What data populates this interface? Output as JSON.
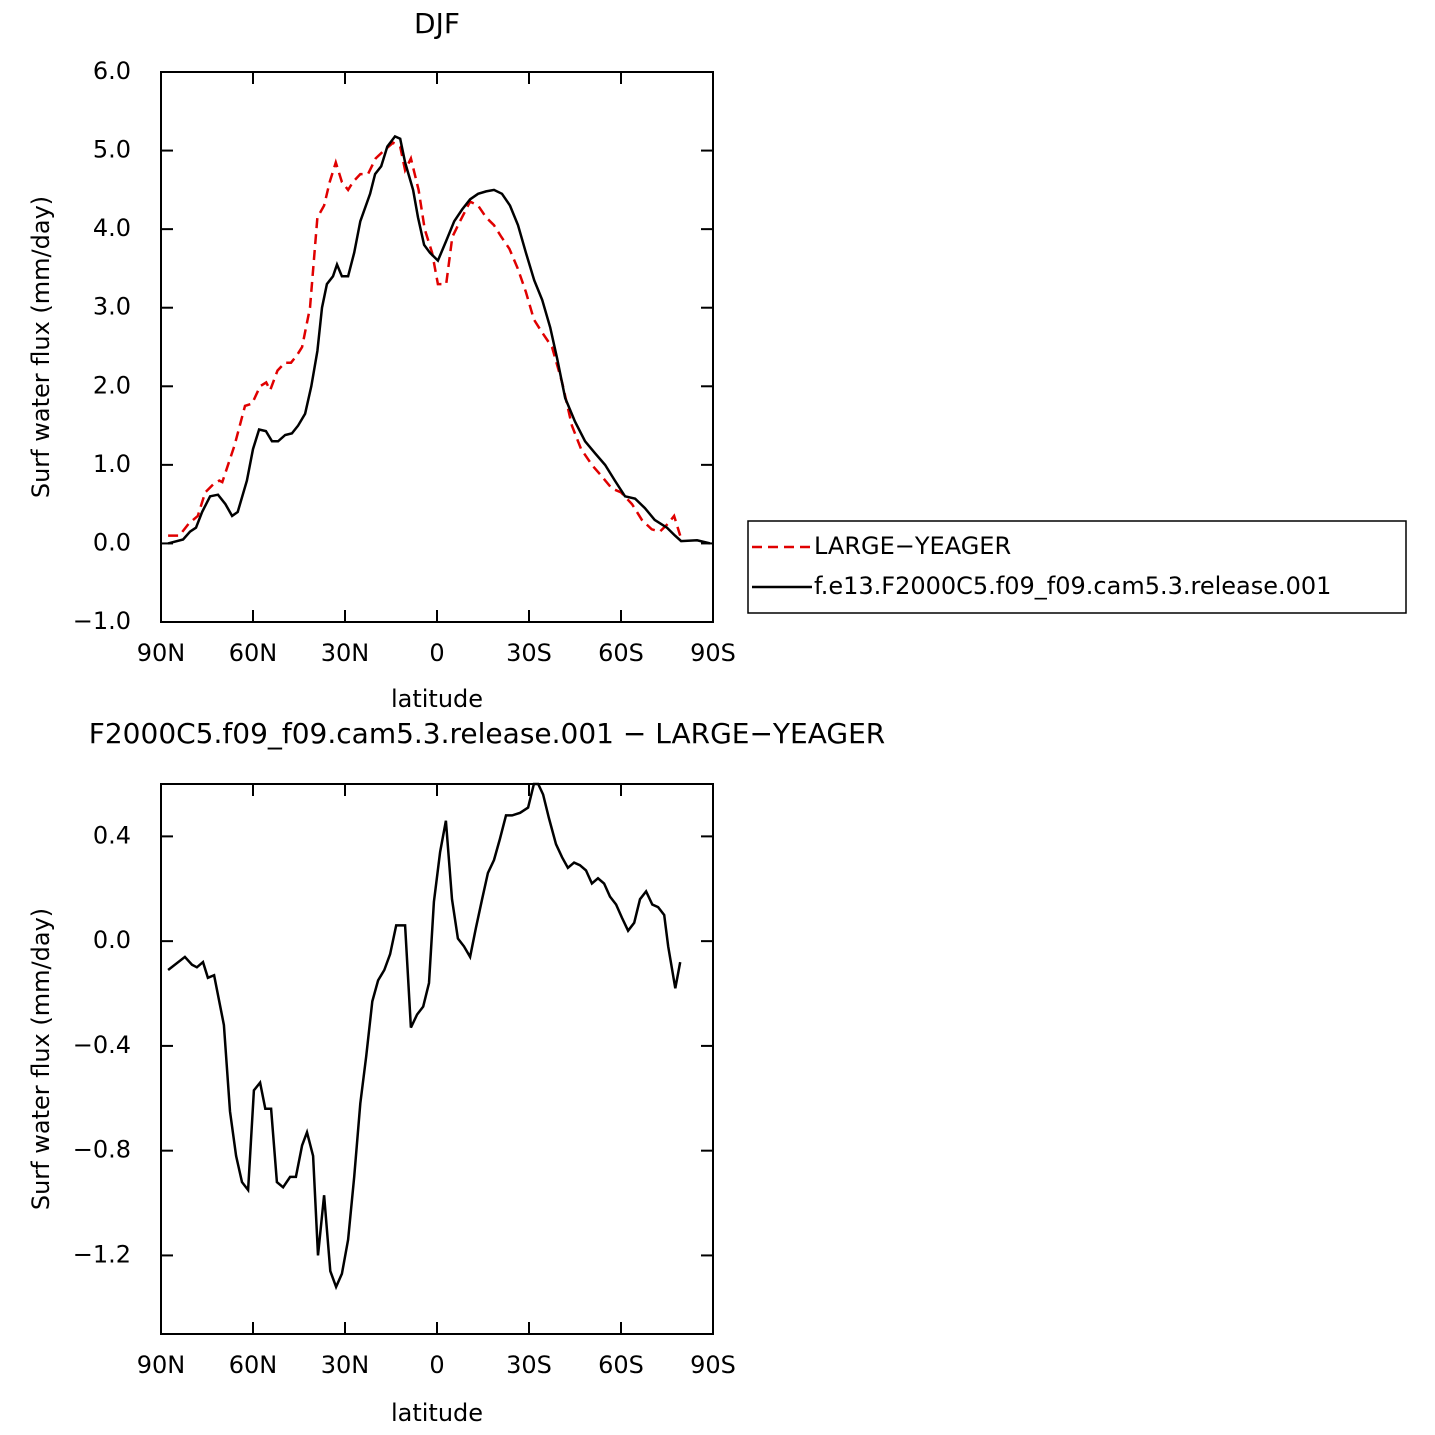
{
  "chart_data": [
    {
      "type": "line",
      "title": "DJF",
      "xlabel": "latitude",
      "ylabel": "Surf water flux (mm/day)",
      "xlim": [
        90,
        -90
      ],
      "xticks": [
        {
          "value": 90,
          "label": "90N"
        },
        {
          "value": 60,
          "label": "60N"
        },
        {
          "value": 30,
          "label": "30N"
        },
        0,
        {
          "value": -30,
          "label": "30S"
        },
        {
          "value": -60,
          "label": "60S"
        },
        {
          "value": -90,
          "label": "90S"
        }
      ],
      "ylim": [
        -1,
        6
      ],
      "yticks": [
        {
          "value": -1,
          "label": "−1.0"
        },
        {
          "value": 0,
          "label": "0.0"
        },
        {
          "value": 1,
          "label": "1.0"
        },
        {
          "value": 2,
          "label": "2.0"
        },
        {
          "value": 3,
          "label": "3.0"
        },
        {
          "value": 4,
          "label": "4.0"
        },
        {
          "value": 5,
          "label": "5.0"
        },
        {
          "value": 6,
          "label": "6.0"
        }
      ],
      "series": [
        {
          "name": "LARGE−YEAGER",
          "color": "#e00000",
          "dashed": true,
          "x": [
            87.7,
            84,
            81,
            78,
            75.6,
            73,
            71,
            70,
            66,
            62.6,
            60.3,
            57.7,
            55.7,
            54.4,
            52,
            49.6,
            47.6,
            45.6,
            44,
            41.4,
            39,
            36.8,
            35,
            33,
            31,
            29,
            27.4,
            25,
            22.5,
            20,
            17.3,
            14.3,
            12,
            10.4,
            8.5,
            6,
            4,
            1.6,
            -0.3,
            -3,
            -5,
            -7.5,
            -10.8,
            -13.4,
            -16,
            -18.6,
            -21,
            -23.6,
            -26.3,
            -29,
            -31.6,
            -34,
            -37.5,
            -40.8,
            -44,
            -47,
            -50.5,
            -53.8,
            -57,
            -60,
            -63.6,
            -66.8,
            -70,
            -72.7,
            -75.3,
            -77.3,
            -79.3
          ],
          "values": [
            0.1,
            0.1,
            0.25,
            0.35,
            0.65,
            0.75,
            0.8,
            0.78,
            1.25,
            1.75,
            1.78,
            2.0,
            2.05,
            1.95,
            2.2,
            2.3,
            2.3,
            2.4,
            2.5,
            3.0,
            4.15,
            4.3,
            4.6,
            4.85,
            4.6,
            4.5,
            4.6,
            4.7,
            4.7,
            4.9,
            5.0,
            5.1,
            5.05,
            4.75,
            4.9,
            4.5,
            4.0,
            3.7,
            3.3,
            3.3,
            3.9,
            4.1,
            4.35,
            4.3,
            4.15,
            4.05,
            3.9,
            3.75,
            3.5,
            3.2,
            2.85,
            2.7,
            2.5,
            2.05,
            1.5,
            1.2,
            1.0,
            0.85,
            0.7,
            0.65,
            0.5,
            0.3,
            0.18,
            0.15,
            0.25,
            0.35,
            0.1
          ]
        },
        {
          "name": "f.e13.F2000C5.f09_f09.cam5.3.release.001",
          "color": "#000000",
          "dashed": false,
          "x": [
            87.7,
            82.8,
            80.5,
            78.6,
            76.6,
            74,
            71.4,
            69,
            66.8,
            65,
            62,
            60,
            58,
            55.8,
            53.8,
            51.8,
            49.5,
            47.3,
            45.3,
            43,
            41,
            39,
            37.5,
            35.9,
            33.9,
            32.6,
            31,
            29,
            27,
            25,
            21.8,
            20.2,
            18.2,
            16.2,
            13.7,
            12,
            10.4,
            7.8,
            6.2,
            4.2,
            2.3,
            -0.3,
            -3,
            -5.6,
            -8.2,
            -10.8,
            -13.4,
            -16,
            -18.6,
            -21.2,
            -23.8,
            -26.4,
            -29,
            -31.7,
            -34.3,
            -36.9,
            -39.2,
            -41.8,
            -45,
            -48.3,
            -51.5,
            -54.8,
            -58,
            -61.3,
            -64.6,
            -67.8,
            -71,
            -75,
            -77.6,
            -79.6,
            -84.8,
            -89
          ],
          "values": [
            0.0,
            0.05,
            0.15,
            0.2,
            0.4,
            0.6,
            0.62,
            0.5,
            0.35,
            0.4,
            0.8,
            1.2,
            1.45,
            1.43,
            1.3,
            1.3,
            1.38,
            1.4,
            1.5,
            1.65,
            2.0,
            2.45,
            3.0,
            3.3,
            3.4,
            3.55,
            3.4,
            3.4,
            3.7,
            4.1,
            4.45,
            4.7,
            4.8,
            5.05,
            5.18,
            5.15,
            4.85,
            4.5,
            4.15,
            3.8,
            3.7,
            3.6,
            3.85,
            4.1,
            4.25,
            4.38,
            4.45,
            4.48,
            4.5,
            4.45,
            4.3,
            4.05,
            3.7,
            3.35,
            3.1,
            2.75,
            2.35,
            1.85,
            1.55,
            1.3,
            1.15,
            1.0,
            0.8,
            0.6,
            0.57,
            0.45,
            0.3,
            0.2,
            0.1,
            0.03,
            0.04,
            0.0
          ]
        }
      ]
    },
    {
      "type": "line",
      "title": "F2000C5.f09_f09.cam5.3.release.001 − LARGE−YEAGER",
      "xlabel": "latitude",
      "ylabel": "Surf water flux (mm/day)",
      "xlim": [
        90,
        -90
      ],
      "xticks": [
        {
          "value": 90,
          "label": "90N"
        },
        {
          "value": 60,
          "label": "60N"
        },
        {
          "value": 30,
          "label": "30N"
        },
        0,
        {
          "value": -30,
          "label": "30S"
        },
        {
          "value": -60,
          "label": "60S"
        },
        {
          "value": -90,
          "label": "90S"
        }
      ],
      "ylim": [
        -1.5,
        0.6
      ],
      "yticks": [
        {
          "value": -1.2,
          "label": "−1.2"
        },
        {
          "value": -0.8,
          "label": "−0.8"
        },
        {
          "value": -0.4,
          "label": "−0.4"
        },
        {
          "value": 0,
          "label": "0.0"
        },
        0.4
      ],
      "series": [
        {
          "color": "#000000",
          "dashed": false,
          "x": [
            87.7,
            82.2,
            79.9,
            78.3,
            76.3,
            74.7,
            72.7,
            69.5,
            67.5,
            65.5,
            63.6,
            61.6,
            59.7,
            57.7,
            56,
            54.1,
            52.2,
            50.2,
            47.9,
            46,
            44,
            42.4,
            40.4,
            38.8,
            36.8,
            34.8,
            32.9,
            31,
            29,
            27,
            25,
            23.1,
            21.1,
            19.2,
            17.2,
            15.3,
            13.3,
            10.4,
            8.5,
            6.5,
            4.5,
            2.6,
            1,
            -1,
            -2.9,
            -4.9,
            -6.8,
            -8.8,
            -10.8,
            -12.7,
            -14.7,
            -16.6,
            -18.6,
            -20.5,
            -22.5,
            -24.5,
            -27.1,
            -29.7,
            -31.6,
            -33,
            -34.6,
            -36.5,
            -38.8,
            -40.8,
            -42.7,
            -44.7,
            -46.6,
            -48.6,
            -50.5,
            -52.5,
            -54.5,
            -56.4,
            -58.4,
            -60.3,
            -62.3,
            -64.3,
            -66.2,
            -68.2,
            -70.2,
            -72.1,
            -74.1,
            -75.4,
            -77.7,
            -79.3
          ],
          "values": [
            -0.11,
            -0.06,
            -0.09,
            -0.1,
            -0.08,
            -0.14,
            -0.13,
            -0.32,
            -0.65,
            -0.82,
            -0.92,
            -0.95,
            -0.57,
            -0.54,
            -0.64,
            -0.64,
            -0.92,
            -0.94,
            -0.9,
            -0.9,
            -0.78,
            -0.73,
            -0.82,
            -1.2,
            -0.97,
            -1.26,
            -1.32,
            -1.27,
            -1.14,
            -0.9,
            -0.62,
            -0.44,
            -0.23,
            -0.15,
            -0.11,
            -0.05,
            0.06,
            0.06,
            -0.33,
            -0.28,
            -0.25,
            -0.16,
            0.15,
            0.34,
            0.46,
            0.16,
            0.01,
            -0.02,
            -0.06,
            0.05,
            0.16,
            0.26,
            0.31,
            0.39,
            0.48,
            0.48,
            0.49,
            0.51,
            0.6,
            0.6,
            0.56,
            0.47,
            0.37,
            0.32,
            0.28,
            0.3,
            0.29,
            0.27,
            0.22,
            0.24,
            0.22,
            0.17,
            0.14,
            0.09,
            0.04,
            0.07,
            0.16,
            0.19,
            0.14,
            0.13,
            0.1,
            -0.02,
            -0.18,
            -0.08
          ]
        }
      ]
    }
  ]
}
